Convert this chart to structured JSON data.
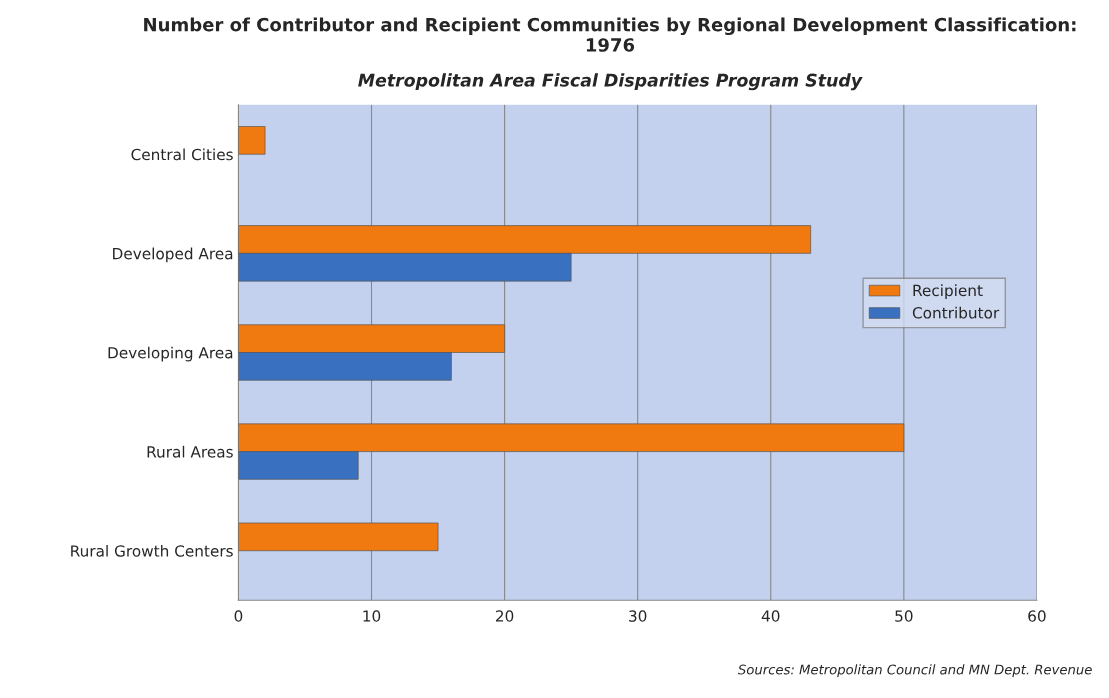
{
  "chart_data": {
    "type": "bar",
    "orientation": "horizontal",
    "title": "Number of Contributor and Recipient Communities by Regional Development Classification:\n1976",
    "subtitle": "Metropolitan Area Fiscal Disparities Program Study",
    "categories": [
      "Central Cities",
      "Developed Area",
      "Developing Area",
      "Rural Areas",
      "Rural Growth Centers"
    ],
    "series": [
      {
        "name": "Recipient",
        "color": "#f07a10",
        "values": [
          2,
          43,
          20,
          50,
          15
        ]
      },
      {
        "name": "Contributor",
        "color": "#3a70c0",
        "values": [
          null,
          25,
          16,
          9,
          null
        ]
      }
    ],
    "xlim": [
      0,
      60
    ],
    "xticks": [
      0,
      10,
      20,
      30,
      40,
      50,
      60
    ],
    "grid": "x",
    "legend": "right",
    "annotations": [
      "Sources: Metropolitan Council and MN Dept. Revenue"
    ]
  }
}
